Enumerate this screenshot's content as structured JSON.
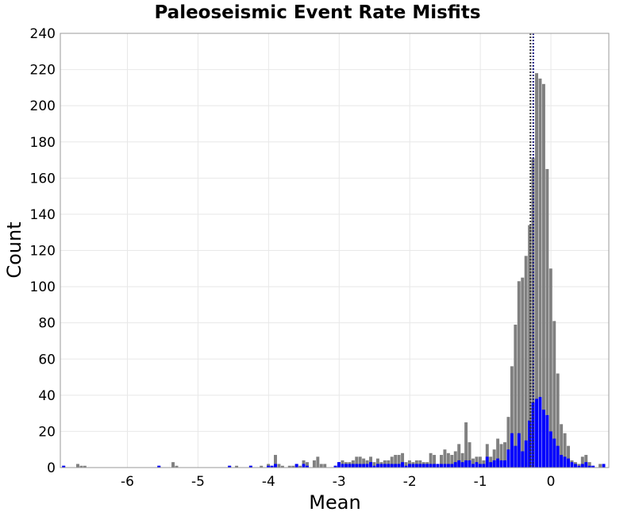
{
  "chart_data": {
    "type": "bar",
    "title": "Paleoseismic Event Rate Misfits",
    "xlabel": "Mean",
    "ylabel": "Count",
    "xlim": [
      -6.95,
      0.82
    ],
    "ylim": [
      0,
      240
    ],
    "grid": true,
    "bin_width": 0.05,
    "x_ticks": [
      -6,
      -5,
      -4,
      -3,
      -2,
      -1,
      0
    ],
    "y_ticks": [
      0,
      20,
      40,
      60,
      80,
      100,
      120,
      140,
      160,
      180,
      200,
      220,
      240
    ],
    "series": [
      {
        "color": "#808080",
        "points": [
          [
            -6.9,
            1
          ],
          [
            -6.7,
            2
          ],
          [
            -6.65,
            1
          ],
          [
            -6.6,
            1
          ],
          [
            -5.55,
            1
          ],
          [
            -5.35,
            3
          ],
          [
            -5.3,
            1
          ],
          [
            -4.55,
            1
          ],
          [
            -4.45,
            1
          ],
          [
            -4.25,
            1
          ],
          [
            -4.1,
            1
          ],
          [
            -4.0,
            2
          ],
          [
            -3.95,
            1
          ],
          [
            -3.9,
            7
          ],
          [
            -3.85,
            2
          ],
          [
            -3.8,
            1
          ],
          [
            -3.7,
            1
          ],
          [
            -3.65,
            1
          ],
          [
            -3.6,
            2
          ],
          [
            -3.55,
            1
          ],
          [
            -3.5,
            4
          ],
          [
            -3.45,
            3
          ],
          [
            -3.35,
            4
          ],
          [
            -3.3,
            6
          ],
          [
            -3.25,
            2
          ],
          [
            -3.2,
            2
          ],
          [
            -3.05,
            1
          ],
          [
            -3.0,
            3
          ],
          [
            -2.95,
            4
          ],
          [
            -2.9,
            3
          ],
          [
            -2.85,
            3
          ],
          [
            -2.8,
            4
          ],
          [
            -2.75,
            6
          ],
          [
            -2.7,
            6
          ],
          [
            -2.65,
            5
          ],
          [
            -2.6,
            4
          ],
          [
            -2.55,
            6
          ],
          [
            -2.5,
            3
          ],
          [
            -2.45,
            5
          ],
          [
            -2.4,
            3
          ],
          [
            -2.35,
            4
          ],
          [
            -2.3,
            4
          ],
          [
            -2.25,
            6
          ],
          [
            -2.2,
            7
          ],
          [
            -2.15,
            7
          ],
          [
            -2.1,
            8
          ],
          [
            -2.05,
            3
          ],
          [
            -2.0,
            4
          ],
          [
            -1.95,
            3
          ],
          [
            -1.9,
            4
          ],
          [
            -1.85,
            4
          ],
          [
            -1.8,
            3
          ],
          [
            -1.75,
            3
          ],
          [
            -1.7,
            8
          ],
          [
            -1.65,
            7
          ],
          [
            -1.6,
            2
          ],
          [
            -1.55,
            7
          ],
          [
            -1.5,
            10
          ],
          [
            -1.45,
            8
          ],
          [
            -1.4,
            7
          ],
          [
            -1.35,
            9
          ],
          [
            -1.3,
            13
          ],
          [
            -1.25,
            8
          ],
          [
            -1.2,
            25
          ],
          [
            -1.15,
            14
          ],
          [
            -1.1,
            5
          ],
          [
            -1.05,
            6
          ],
          [
            -1.0,
            6
          ],
          [
            -0.95,
            4
          ],
          [
            -0.9,
            13
          ],
          [
            -0.85,
            6
          ],
          [
            -0.8,
            10
          ],
          [
            -0.75,
            16
          ],
          [
            -0.7,
            13
          ],
          [
            -0.65,
            14
          ],
          [
            -0.6,
            28
          ],
          [
            -0.55,
            56
          ],
          [
            -0.5,
            79
          ],
          [
            -0.45,
            103
          ],
          [
            -0.4,
            105
          ],
          [
            -0.35,
            117
          ],
          [
            -0.3,
            134
          ],
          [
            -0.25,
            171
          ],
          [
            -0.2,
            218
          ],
          [
            -0.15,
            215
          ],
          [
            -0.1,
            212
          ],
          [
            -0.05,
            165
          ],
          [
            0.0,
            110
          ],
          [
            0.05,
            81
          ],
          [
            0.1,
            52
          ],
          [
            0.15,
            24
          ],
          [
            0.2,
            19
          ],
          [
            0.25,
            12
          ],
          [
            0.3,
            4
          ],
          [
            0.35,
            3
          ],
          [
            0.4,
            2
          ],
          [
            0.45,
            6
          ],
          [
            0.5,
            7
          ],
          [
            0.55,
            3
          ],
          [
            0.6,
            1
          ],
          [
            0.7,
            2
          ],
          [
            0.75,
            2
          ]
        ]
      },
      {
        "color": "#0000ff",
        "points": [
          [
            -6.9,
            1
          ],
          [
            -5.55,
            1
          ],
          [
            -4.55,
            1
          ],
          [
            -4.25,
            1
          ],
          [
            -4.0,
            1
          ],
          [
            -3.95,
            1
          ],
          [
            -3.9,
            2
          ],
          [
            -3.6,
            2
          ],
          [
            -3.5,
            2
          ],
          [
            -3.45,
            1
          ],
          [
            -3.05,
            1
          ],
          [
            -3.0,
            3
          ],
          [
            -2.95,
            2
          ],
          [
            -2.9,
            2
          ],
          [
            -2.85,
            2
          ],
          [
            -2.8,
            2
          ],
          [
            -2.75,
            2
          ],
          [
            -2.7,
            2
          ],
          [
            -2.65,
            2
          ],
          [
            -2.6,
            2
          ],
          [
            -2.55,
            3
          ],
          [
            -2.5,
            1
          ],
          [
            -2.45,
            2
          ],
          [
            -2.4,
            2
          ],
          [
            -2.35,
            2
          ],
          [
            -2.3,
            2
          ],
          [
            -2.25,
            2
          ],
          [
            -2.2,
            2
          ],
          [
            -2.15,
            2
          ],
          [
            -2.1,
            3
          ],
          [
            -2.05,
            1
          ],
          [
            -2.0,
            2
          ],
          [
            -1.95,
            2
          ],
          [
            -1.9,
            2
          ],
          [
            -1.85,
            2
          ],
          [
            -1.8,
            2
          ],
          [
            -1.75,
            2
          ],
          [
            -1.7,
            2
          ],
          [
            -1.65,
            2
          ],
          [
            -1.6,
            2
          ],
          [
            -1.55,
            2
          ],
          [
            -1.5,
            2
          ],
          [
            -1.45,
            2
          ],
          [
            -1.4,
            2
          ],
          [
            -1.35,
            3
          ],
          [
            -1.3,
            4
          ],
          [
            -1.25,
            3
          ],
          [
            -1.2,
            4
          ],
          [
            -1.15,
            4
          ],
          [
            -1.1,
            2
          ],
          [
            -1.05,
            3
          ],
          [
            -1.0,
            2
          ],
          [
            -0.95,
            2
          ],
          [
            -0.9,
            6
          ],
          [
            -0.85,
            3
          ],
          [
            -0.8,
            4
          ],
          [
            -0.75,
            5
          ],
          [
            -0.7,
            4
          ],
          [
            -0.65,
            4
          ],
          [
            -0.6,
            10
          ],
          [
            -0.55,
            19
          ],
          [
            -0.5,
            12
          ],
          [
            -0.45,
            19
          ],
          [
            -0.4,
            9
          ],
          [
            -0.35,
            15
          ],
          [
            -0.3,
            26
          ],
          [
            -0.25,
            36
          ],
          [
            -0.2,
            38
          ],
          [
            -0.15,
            39
          ],
          [
            -0.1,
            32
          ],
          [
            -0.05,
            29
          ],
          [
            0.0,
            20
          ],
          [
            0.05,
            16
          ],
          [
            0.1,
            12
          ],
          [
            0.15,
            7
          ],
          [
            0.2,
            6
          ],
          [
            0.25,
            5
          ],
          [
            0.3,
            3
          ],
          [
            0.35,
            2
          ],
          [
            0.4,
            1
          ],
          [
            0.45,
            2
          ],
          [
            0.5,
            3
          ],
          [
            0.55,
            1
          ],
          [
            0.6,
            1
          ],
          [
            0.75,
            2
          ]
        ]
      }
    ],
    "vertical_lines": [
      {
        "x": -0.29,
        "color": "#333333",
        "style": "dotted"
      },
      {
        "x": -0.25,
        "color": "#1a1a80",
        "style": "dotted"
      }
    ]
  }
}
